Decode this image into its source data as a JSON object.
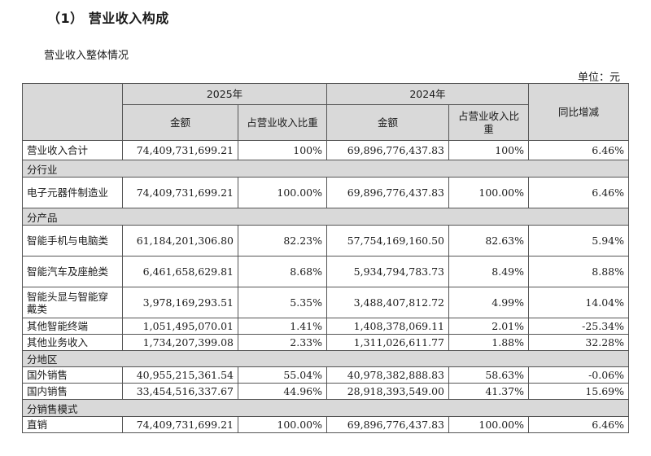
{
  "heading": "（1） 营业收入构成",
  "subheading": "营业收入整体情况",
  "unit": "单位：元",
  "header": {
    "year_2025": "2025年",
    "year_2024": "2024年",
    "amount_2025": "金额",
    "ratio_2025": "占营业收入比重",
    "amount_2024": "金额",
    "ratio_2024": "占营业收入比重",
    "yoy": "同比增减"
  },
  "rows": {
    "total": {
      "label": "营业收入合计",
      "a25": "74,409,731,699.21",
      "r25": "100%",
      "a24": "69,896,776,437.83",
      "r24": "100%",
      "yoy": "6.46%"
    },
    "sec_industry": "分行业",
    "electronics": {
      "label": "电子元器件制造业",
      "a25": "74,409,731,699.21",
      "r25": "100.00%",
      "a24": "69,896,776,437.83",
      "r24": "100.00%",
      "yoy": "6.46%"
    },
    "sec_product": "分产品",
    "phone_pc": {
      "label": "智能手机与电脑类",
      "a25": "61,184,201,306.80",
      "r25": "82.23%",
      "a24": "57,754,169,160.50",
      "r24": "82.63%",
      "yoy": "5.94%"
    },
    "auto": {
      "label": "智能汽车及座舱类",
      "a25": "6,461,658,629.81",
      "r25": "8.68%",
      "a24": "5,934,794,783.73",
      "r24": "8.49%",
      "yoy": "8.88%"
    },
    "headset": {
      "label": "智能头显与智能穿戴类",
      "a25": "3,978,169,293.51",
      "r25": "5.35%",
      "a24": "3,488,407,812.72",
      "r24": "4.99%",
      "yoy": "14.04%"
    },
    "other_term": {
      "label": "其他智能终端",
      "a25": "1,051,495,070.01",
      "r25": "1.41%",
      "a24": "1,408,378,069.11",
      "r24": "2.01%",
      "yoy": "-25.34%"
    },
    "other_biz": {
      "label": "其他业务收入",
      "a25": "1,734,207,399.08",
      "r25": "2.33%",
      "a24": "1,311,026,611.77",
      "r24": "1.88%",
      "yoy": "32.28%"
    },
    "sec_region": "分地区",
    "overseas": {
      "label": "国外销售",
      "a25": "40,955,215,361.54",
      "r25": "55.04%",
      "a24": "40,978,382,888.83",
      "r24": "58.63%",
      "yoy": "-0.06%"
    },
    "domestic": {
      "label": "国内销售",
      "a25": "33,454,516,337.67",
      "r25": "44.96%",
      "a24": "28,918,393,549.00",
      "r24": "41.37%",
      "yoy": "15.69%"
    },
    "sec_mode": "分销售模式",
    "direct": {
      "label": "直销",
      "a25": "74,409,731,699.21",
      "r25": "100.00%",
      "a24": "69,896,776,437.83",
      "r24": "100.00%",
      "yoy": "6.46%"
    }
  }
}
